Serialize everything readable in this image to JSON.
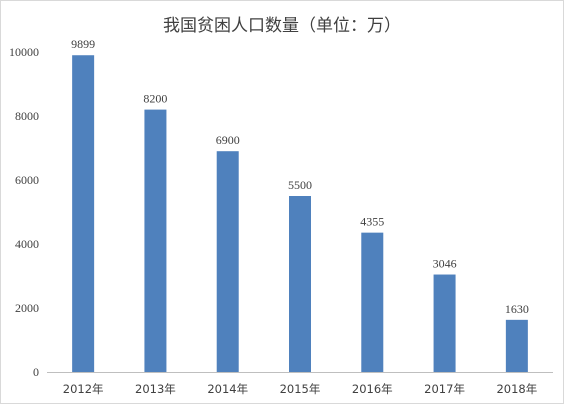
{
  "chart_data": {
    "type": "bar",
    "title": "我国贫困人口数量（单位：万）",
    "xlabel": "",
    "ylabel": "",
    "categories": [
      "2012年",
      "2013年",
      "2014年",
      "2015年",
      "2016年",
      "2017年",
      "2018年"
    ],
    "values": [
      9899,
      8200,
      6900,
      5500,
      4355,
      3046,
      1630
    ],
    "data_labels": [
      "9899",
      "8200",
      "6900",
      "5500",
      "4355",
      "3046",
      "1630"
    ],
    "yticks": [
      "0",
      "2000",
      "4000",
      "6000",
      "8000",
      "10000"
    ],
    "ylim": [
      0,
      10000
    ],
    "grid": false,
    "legend": "none",
    "bar_color": "#4f81bd"
  }
}
